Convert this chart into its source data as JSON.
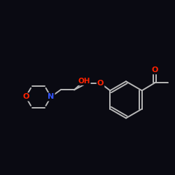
{
  "bg": "#0a0a12",
  "bond_color": "#b8b8b8",
  "N_color": "#3355ff",
  "O_color": "#ff2200",
  "bw": 1.4,
  "figsize": [
    2.5,
    2.5
  ],
  "dpi": 100,
  "xlim": [
    0,
    10
  ],
  "ylim": [
    0,
    10
  ]
}
